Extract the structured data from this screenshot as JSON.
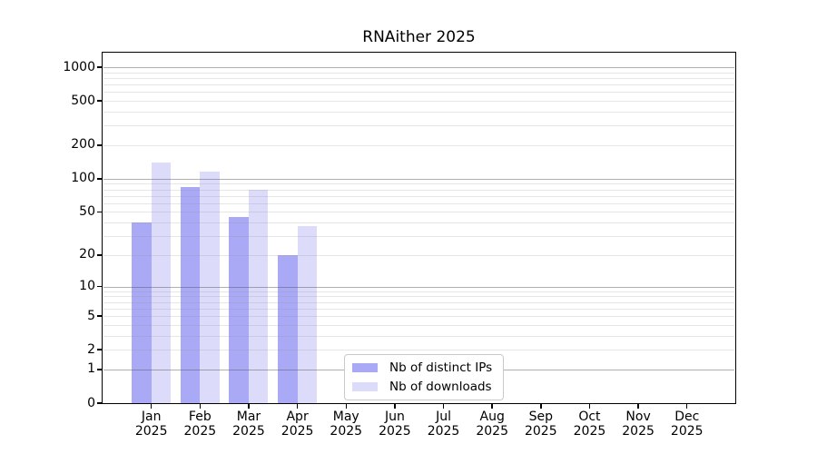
{
  "title": "RNAither 2025",
  "chart_data": {
    "type": "bar",
    "title": "RNAither 2025",
    "categories": [
      "Jan 2025",
      "Feb 2025",
      "Mar 2025",
      "Apr 2025",
      "May 2025",
      "Jun 2025",
      "Jul 2025",
      "Aug 2025",
      "Sep 2025",
      "Oct 2025",
      "Nov 2025",
      "Dec 2025"
    ],
    "x_tick_months": [
      "Jan",
      "Feb",
      "Mar",
      "Apr",
      "May",
      "Jun",
      "Jul",
      "Aug",
      "Sep",
      "Oct",
      "Nov",
      "Dec"
    ],
    "x_tick_year": "2025",
    "series": [
      {
        "name": "Nb of distinct IPs",
        "color": "#a9a9f5",
        "values": [
          40,
          84,
          45,
          20,
          0,
          0,
          0,
          0,
          0,
          0,
          0,
          0
        ]
      },
      {
        "name": "Nb of downloads",
        "color": "#dcdcfa",
        "values": [
          140,
          117,
          79,
          37,
          0,
          0,
          0,
          0,
          0,
          0,
          0,
          0
        ]
      }
    ],
    "y_scale": "log10(1+x)",
    "y_tick_values": [
      0,
      1,
      2,
      5,
      10,
      20,
      50,
      100,
      200,
      500,
      1000
    ],
    "y_tick_labels": [
      "0",
      "1",
      "2",
      "5",
      "10",
      "20",
      "50",
      "100",
      "200",
      "500",
      "1000"
    ],
    "y_major_gridlines": [
      1,
      10,
      100,
      1000
    ],
    "ylim": [
      0,
      1350
    ],
    "grid": true,
    "legend_position": "lower center",
    "xlabel": "",
    "ylabel": ""
  },
  "legend": {
    "items": [
      {
        "label": "Nb of distinct IPs",
        "color": "#a9a9f5"
      },
      {
        "label": "Nb of downloads",
        "color": "#dcdcfa"
      }
    ]
  }
}
